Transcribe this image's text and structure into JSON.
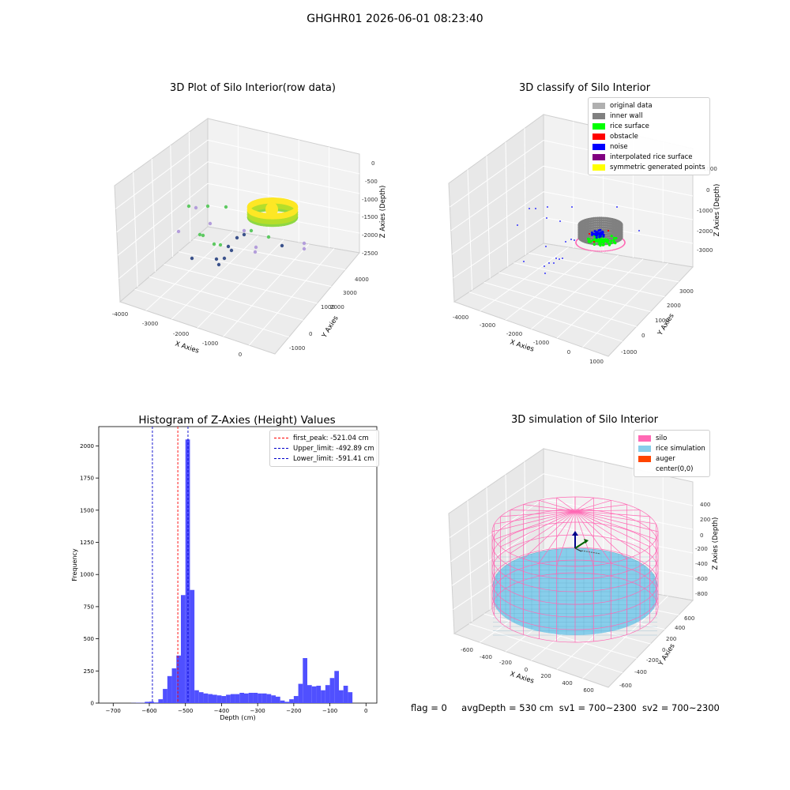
{
  "figure": {
    "suptitle": "GHGHR01 2026-06-01 08:23:40",
    "status": {
      "flag": "flag = 0",
      "avg_depth": "avgDepth = 530 cm",
      "sv1": "sv1 = 700~2300",
      "sv2": "sv2 = 700~2300"
    }
  },
  "chart_data": [
    {
      "type": "scatter3d",
      "title": "3D Plot of Silo Interior(row data)",
      "xlabel": "X Axies",
      "ylabel": "Y Axies",
      "zlabel": "Z Axies (Depth)",
      "x_ticks": [
        "-4000",
        "-3000",
        "-2000",
        "-1000",
        "0"
      ],
      "y_ticks": [
        "-1000",
        "0",
        "1000",
        "2000",
        "3000",
        "4000"
      ],
      "z_ticks": [
        "0",
        "-500",
        "-1000",
        "-1500",
        "-2000",
        "-2500"
      ],
      "colors": {
        "high": "#fde725",
        "mid": "#5ec962",
        "low": "#3b528b",
        "outlier": "#b39ddb"
      }
    },
    {
      "type": "scatter3d",
      "title": "3D classify of Silo Interior",
      "xlabel": "X Axies",
      "ylabel": "Y Axies",
      "zlabel": "Z Axies (Depth)",
      "x_ticks": [
        "-4000",
        "-3000",
        "-2000",
        "-1000",
        "0",
        "1000"
      ],
      "y_ticks": [
        "-1000",
        "0",
        "1000",
        "2000",
        "3000"
      ],
      "z_ticks": [
        "1000",
        "0",
        "-1000",
        "-2000",
        "-3000"
      ],
      "legend": [
        {
          "label": "original data",
          "color": "#b0b0b0"
        },
        {
          "label": "inner wall",
          "color": "#808080"
        },
        {
          "label": "rice surface",
          "color": "#00ff00"
        },
        {
          "label": "obstacle",
          "color": "#ff0000"
        },
        {
          "label": "noise",
          "color": "#0000ff"
        },
        {
          "label": "interpolated rice surface",
          "color": "#800080"
        },
        {
          "label": "symmetric generated points",
          "color": "#ffff00"
        }
      ]
    },
    {
      "type": "bar",
      "title": "Histogram of Z-Axies (Height) Values",
      "xlabel": "Depth (cm)",
      "ylabel": "Frequency",
      "xlim": [
        -740,
        30
      ],
      "ylim": [
        0,
        2150
      ],
      "x_ticks": [
        -700,
        -600,
        -500,
        -400,
        -300,
        -200,
        -100,
        0
      ],
      "y_ticks": [
        0,
        250,
        500,
        750,
        1000,
        1250,
        1500,
        1750,
        2000
      ],
      "bar_color": "#5050ff",
      "bin_width": 12.5,
      "bin_start": -700,
      "values": [
        0,
        0,
        0,
        0,
        1,
        2,
        2,
        10,
        12,
        5,
        30,
        110,
        210,
        270,
        370,
        840,
        2050,
        880,
        100,
        85,
        75,
        70,
        65,
        60,
        55,
        65,
        70,
        70,
        80,
        75,
        80,
        80,
        75,
        75,
        70,
        60,
        50,
        20,
        10,
        30,
        55,
        150,
        350,
        140,
        130,
        135,
        100,
        140,
        195,
        250,
        100,
        135,
        85
      ],
      "lines": [
        {
          "label": "first_peak: -521.04 cm",
          "value": -521.04,
          "color": "#ff0000"
        },
        {
          "label": "Upper_limit: -492.89 cm",
          "value": -492.89,
          "color": "#0000cc"
        },
        {
          "label": "Lower_limit: -591.41 cm",
          "value": -591.41,
          "color": "#0000cc"
        }
      ]
    },
    {
      "type": "surface3d",
      "title": "3D simulation of Silo Interior",
      "xlabel": "X Axies",
      "ylabel": "Y Axies",
      "zlabel": "Z Axies (Depth)",
      "x_ticks": [
        "-600",
        "-400",
        "-200",
        "0",
        "200",
        "400",
        "600"
      ],
      "y_ticks": [
        "-600",
        "-400",
        "-200",
        "0",
        "200",
        "400",
        "600"
      ],
      "z_ticks": [
        "400",
        "200",
        "0",
        "-200",
        "-400",
        "-600",
        "-800"
      ],
      "legend": [
        {
          "label": "silo",
          "color": "#ff69b4"
        },
        {
          "label": "rice simulation",
          "color": "#87ceeb"
        },
        {
          "label": "auger",
          "color": "#ff4500"
        },
        {
          "label": "center(0,0)",
          "color": ""
        }
      ]
    }
  ]
}
